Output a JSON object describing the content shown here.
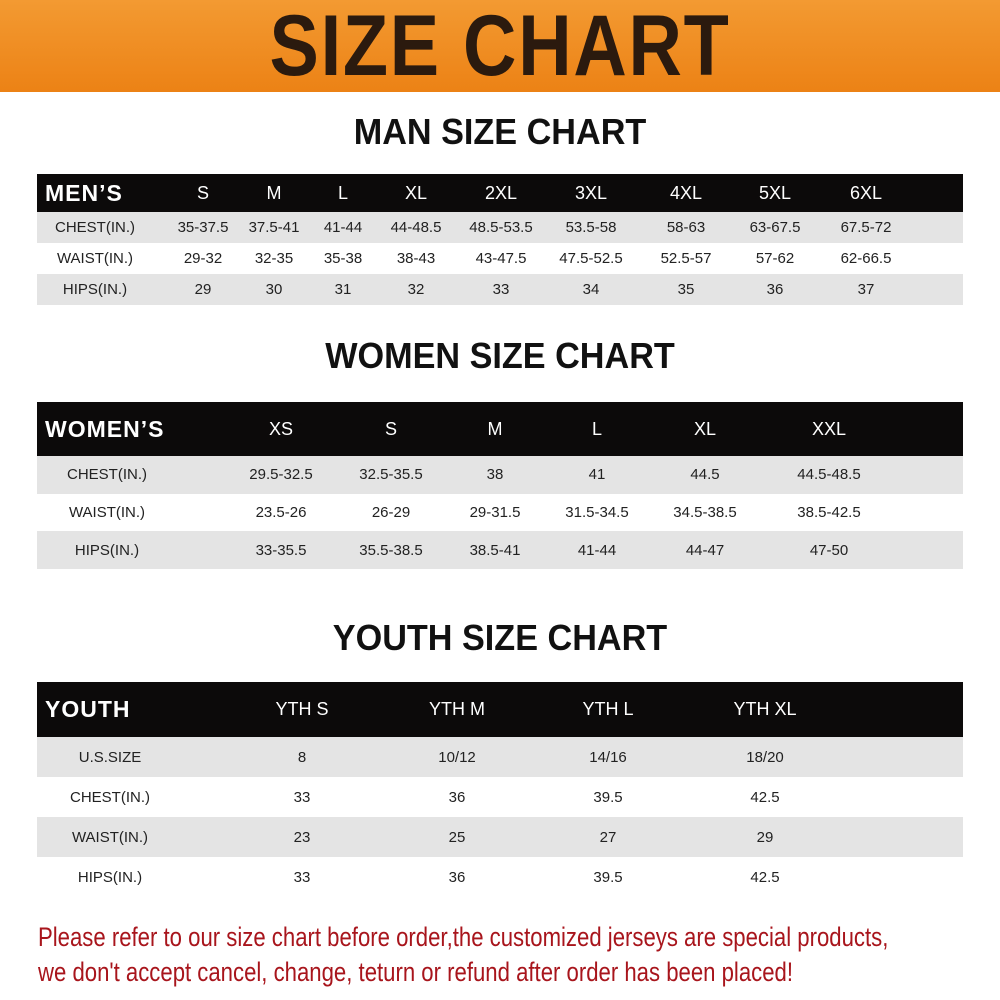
{
  "banner": {
    "title": "SIZE CHART",
    "color": "#ef8a1e"
  },
  "men": {
    "heading": "MAN SIZE CHART",
    "header": [
      "MEN’S",
      "S",
      "M",
      "L",
      "XL",
      "2XL",
      "3XL",
      "4XL",
      "5XL",
      "6XL"
    ],
    "rows": [
      [
        "CHEST(IN.)",
        "35-37.5",
        "37.5-41",
        "41-44",
        "44-48.5",
        "48.5-53.5",
        "53.5-58",
        "58-63",
        "63-67.5",
        "67.5-72"
      ],
      [
        "WAIST(IN.)",
        "29-32",
        "32-35",
        "35-38",
        "38-43",
        "43-47.5",
        "47.5-52.5",
        "52.5-57",
        "57-62",
        "62-66.5"
      ],
      [
        "HIPS(IN.)",
        "29",
        "30",
        "31",
        "32",
        "33",
        "34",
        "35",
        "36",
        "37"
      ]
    ]
  },
  "women": {
    "heading": "WOMEN SIZE CHART",
    "header": [
      "WOMEN’S",
      "XS",
      "S",
      "M",
      "L",
      "XL",
      "XXL"
    ],
    "rows": [
      [
        "CHEST(IN.)",
        "29.5-32.5",
        "32.5-35.5",
        "38",
        "41",
        "44.5",
        "44.5-48.5"
      ],
      [
        "WAIST(IN.)",
        "23.5-26",
        "26-29",
        "29-31.5",
        "31.5-34.5",
        "34.5-38.5",
        "38.5-42.5"
      ],
      [
        "HIPS(IN.)",
        "33-35.5",
        "35.5-38.5",
        "38.5-41",
        "41-44",
        "44-47",
        "47-50"
      ]
    ]
  },
  "youth": {
    "heading": "YOUTH SIZE CHART",
    "header": [
      "YOUTH",
      "YTH S",
      "YTH M",
      "YTH L",
      "YTH XL"
    ],
    "rows": [
      [
        "U.S.SIZE",
        "8",
        "10/12",
        "14/16",
        "18/20"
      ],
      [
        "CHEST(IN.)",
        "33",
        "36",
        "39.5",
        "42.5"
      ],
      [
        "WAIST(IN.)",
        "23",
        "25",
        "27",
        "29"
      ],
      [
        "HIPS(IN.)",
        "33",
        "36",
        "39.5",
        "42.5"
      ]
    ]
  },
  "footer": {
    "line1": "Please refer to our size chart before order,the customized jerseys are special products,",
    "line2": "we don't accept cancel, change, teturn or refund after order has been placed!",
    "color": "#a8151c"
  }
}
